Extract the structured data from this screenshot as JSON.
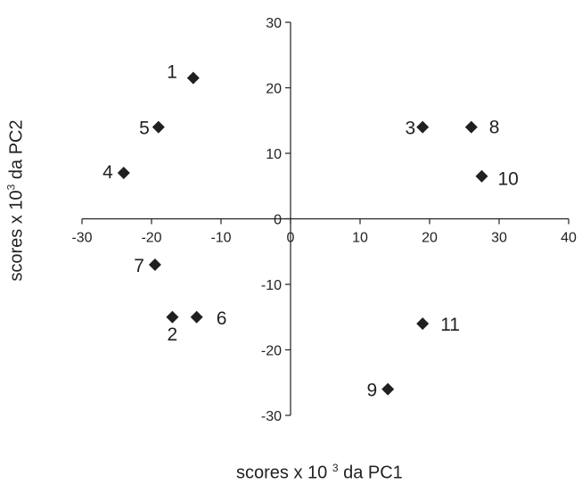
{
  "chart_data": {
    "type": "scatter",
    "xlabel_parts": [
      "scores x 10 ",
      "3",
      " da PC1"
    ],
    "ylabel_parts": [
      "scores x 10",
      "3",
      " da PC2"
    ],
    "xlim": [
      -30,
      40
    ],
    "ylim": [
      -30,
      30
    ],
    "xticks": [
      -30,
      -20,
      -10,
      0,
      10,
      20,
      30,
      40
    ],
    "yticks": [
      -30,
      -20,
      -10,
      0,
      10,
      20,
      30
    ],
    "marker": "diamond",
    "marker_color": "#231f20",
    "grid": false,
    "points": [
      {
        "label": "1",
        "x": -14,
        "y": 21.5
      },
      {
        "label": "2",
        "x": -17,
        "y": -15
      },
      {
        "label": "3",
        "x": 19,
        "y": 14
      },
      {
        "label": "4",
        "x": -24,
        "y": 7
      },
      {
        "label": "5",
        "x": -19,
        "y": 14
      },
      {
        "label": "6",
        "x": -13.5,
        "y": -15
      },
      {
        "label": "7",
        "x": -19.5,
        "y": -7
      },
      {
        "label": "8",
        "x": 26,
        "y": 14
      },
      {
        "label": "9",
        "x": 14,
        "y": -26
      },
      {
        "label": "10",
        "x": 27.5,
        "y": 6.5
      },
      {
        "label": "11",
        "x": 19,
        "y": -16
      }
    ]
  }
}
